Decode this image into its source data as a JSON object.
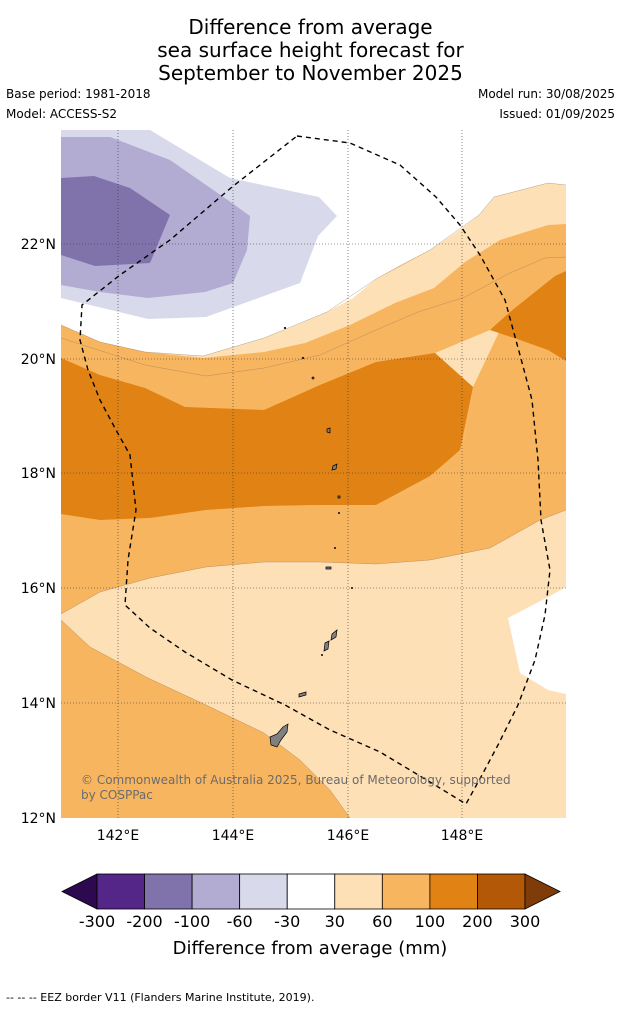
{
  "header": {
    "title_line1": "Difference from average",
    "title_line2": "sea surface height forecast for",
    "title_line3": "September to November 2025",
    "base_period": "Base period: 1981-2018",
    "model": "Model: ACCESS-S2",
    "model_run": "Model run: 30/08/2025",
    "issued": "Issued: 01/09/2025"
  },
  "map": {
    "lat_ticks": [
      "22°N",
      "20°N",
      "18°N",
      "16°N",
      "14°N",
      "12°N"
    ],
    "lon_ticks": [
      "142°E",
      "144°E",
      "146°E",
      "148°E"
    ],
    "copyright_line1": "© Commonwealth of Australia 2025, Bureau of Meteorology, supported",
    "copyright_line2": "by COSPPac"
  },
  "colorbar": {
    "labels": [
      "-300",
      "-200",
      "-100",
      "-60",
      "-30",
      "30",
      "60",
      "100",
      "200",
      "300"
    ],
    "title": "Difference from average (mm)",
    "colors": [
      "#2d0a4f",
      "#542688",
      "#8073ac",
      "#b2abd2",
      "#d8daeb",
      "#ffffff",
      "#fee0b6",
      "#f8b55f",
      "#e08214",
      "#b35806",
      "#7f3b08"
    ]
  },
  "footer": {
    "legend_text": "-- -- -- EEZ border V11 (Flanders Marine Institute, 2019)."
  }
}
